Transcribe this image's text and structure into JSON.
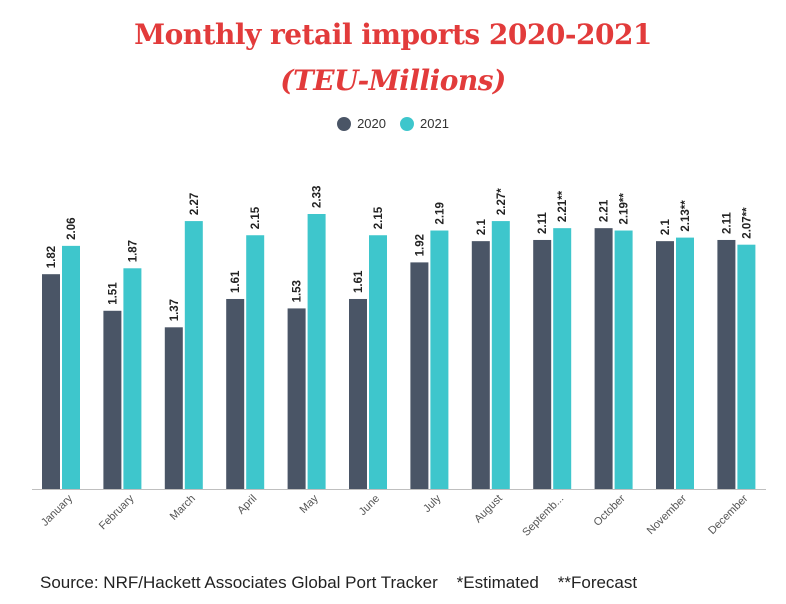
{
  "chart_data": {
    "type": "bar",
    "title": "Monthly retail imports 2020-2021",
    "subtitle": "(TEU-Millions)",
    "categories": [
      "January",
      "February",
      "March",
      "April",
      "May",
      "June",
      "July",
      "August",
      "Septemb...",
      "October",
      "November",
      "December"
    ],
    "series": [
      {
        "name": "2020",
        "color": "#4a5566",
        "values": [
          1.82,
          1.51,
          1.37,
          1.61,
          1.53,
          1.61,
          1.92,
          2.1,
          2.11,
          2.21,
          2.1,
          2.11
        ],
        "labels": [
          "1.82",
          "1.51",
          "1.37",
          "1.61",
          "1.53",
          "1.61",
          "1.92",
          "2.1",
          "2.11",
          "2.21",
          "2.1",
          "2.11"
        ]
      },
      {
        "name": "2021",
        "color": "#3ec6cc",
        "values": [
          2.06,
          1.87,
          2.27,
          2.15,
          2.33,
          2.15,
          2.19,
          2.27,
          2.21,
          2.19,
          2.13,
          2.07
        ],
        "labels": [
          "2.06",
          "1.87",
          "2.27",
          "2.15",
          "2.33",
          "2.15",
          "2.19",
          "2.27*",
          "2.21**",
          "2.19**",
          "2.13**",
          "2.07**"
        ]
      }
    ],
    "ylim": [
      0,
      2.5
    ],
    "xlabel": "",
    "ylabel": "",
    "grid": false,
    "legend_position": "top-center",
    "source": "Source: NRF/Hackett Associates Global Port Tracker    *Estimated    **Forecast"
  }
}
